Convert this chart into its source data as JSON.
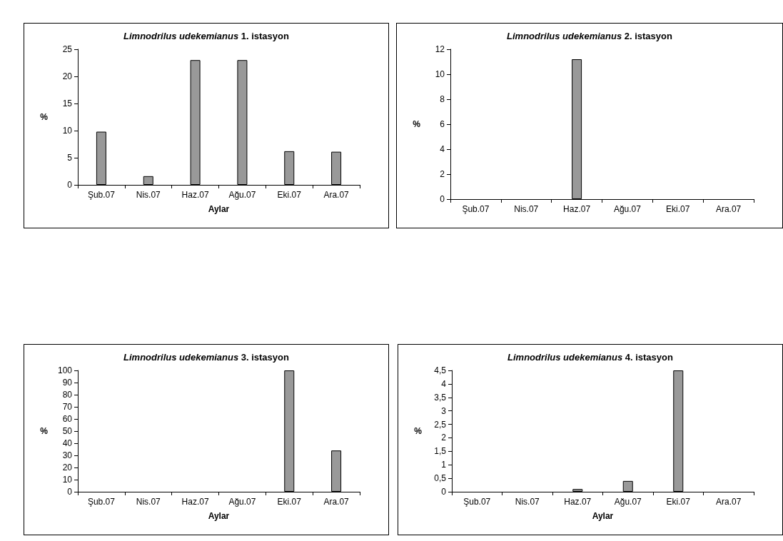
{
  "chart_data": [
    {
      "type": "bar",
      "title": "Limnodrilus udekemianus 1. istasyon",
      "xlabel": "Aylar",
      "ylabel": "%",
      "categories": [
        "Şub.07",
        "Nis.07",
        "Haz.07",
        "Ağu.07",
        "Eki.07",
        "Ara.07"
      ],
      "values": [
        9.8,
        1.6,
        23,
        23,
        6.2,
        6.1
      ],
      "color": "#999999",
      "ylim": [
        0,
        25
      ],
      "yticks": [
        0,
        5,
        10,
        15,
        20,
        25
      ],
      "grid": false
    },
    {
      "type": "bar",
      "title": "Limnodrilus udekemianus 2. istasyon",
      "ylabel": "%",
      "categories": [
        "Şub.07",
        "Nis.07",
        "Haz.07",
        "Ağu.07",
        "Eki.07",
        "Ara.07"
      ],
      "values": [
        0,
        0,
        11.2,
        0,
        0,
        0
      ],
      "color": "#999999",
      "ylim": [
        0,
        12
      ],
      "yticks": [
        0,
        2,
        4,
        6,
        8,
        10,
        12
      ],
      "grid": false
    },
    {
      "type": "bar",
      "title": "Limnodrilus udekemianus 3. istasyon",
      "xlabel": "Aylar",
      "ylabel": "%",
      "categories": [
        "Şub.07",
        "Nis.07",
        "Haz.07",
        "Ağu.07",
        "Eki.07",
        "Ara.07"
      ],
      "values": [
        0,
        0,
        0,
        0,
        100,
        34
      ],
      "color": "#999999",
      "ylim": [
        0,
        100
      ],
      "yticks": [
        0,
        10,
        20,
        30,
        40,
        50,
        60,
        70,
        80,
        90,
        100
      ],
      "grid": false
    },
    {
      "type": "bar",
      "title": "Limnodrilus udekemianus 4. istasyon",
      "xlabel": "Aylar",
      "ylabel": "%",
      "categories": [
        "Şub.07",
        "Nis.07",
        "Haz.07",
        "Ağu.07",
        "Eki.07",
        "Ara.07"
      ],
      "values": [
        0,
        0,
        0.1,
        0.4,
        4.5,
        0
      ],
      "color": "#999999",
      "ylim": [
        0,
        4.5
      ],
      "yticks": [
        0,
        {
          "value": 0.5,
          "label": "0,5"
        },
        1,
        {
          "value": 1.5,
          "label": "1,5"
        },
        2,
        {
          "value": 2.5,
          "label": "2,5"
        },
        3,
        {
          "value": 3.5,
          "label": "3,5"
        },
        4,
        {
          "value": 4.5,
          "label": "4,5"
        }
      ],
      "grid": false
    }
  ]
}
